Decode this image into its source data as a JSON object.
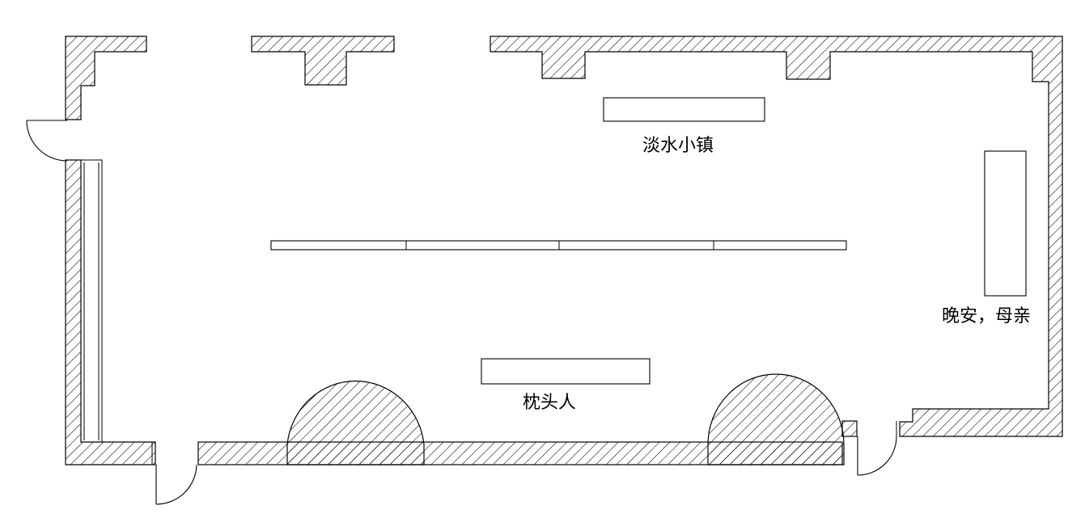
{
  "colors": {
    "stroke": "#000000",
    "background": "#ffffff"
  },
  "labels": {
    "display_top": "淡水小镇",
    "display_right": "晚安，母亲",
    "display_bottom": "枕头人"
  }
}
